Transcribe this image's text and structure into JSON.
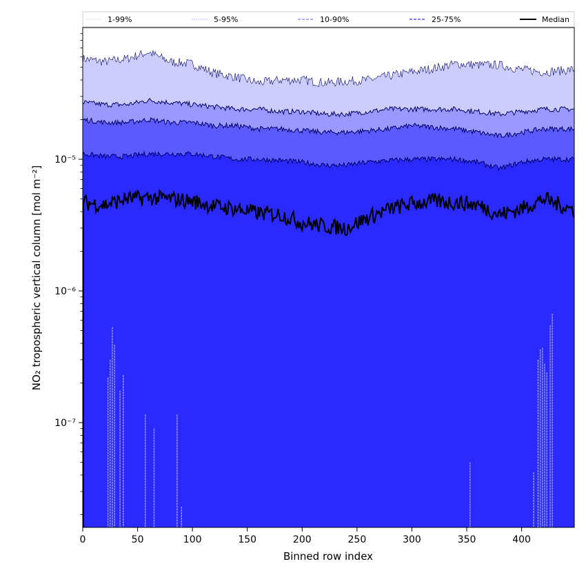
{
  "chart_data": {
    "type": "area",
    "xlabel": "Binned row index",
    "ylabel": "NO₂ tropospheric vertical column [mol m⁻²]",
    "x_ticks": [
      0,
      50,
      100,
      150,
      200,
      250,
      300,
      350,
      400
    ],
    "x_tick_labels": [
      "0",
      "50",
      "100",
      "150",
      "200",
      "250",
      "300",
      "350",
      "400"
    ],
    "y_ticks": [
      1e-07,
      1e-06,
      1e-05
    ],
    "y_tick_labels": [
      "10⁻⁷",
      "10⁻⁶",
      "10⁻⁵"
    ],
    "xlim": [
      0,
      448
    ],
    "ylim": [
      1.6e-08,
      0.0001
    ],
    "y_scale": "log",
    "grid": false,
    "legend_position": "top",
    "x": [
      0,
      20,
      40,
      60,
      80,
      100,
      120,
      140,
      160,
      180,
      200,
      220,
      240,
      260,
      280,
      300,
      320,
      340,
      360,
      380,
      400,
      420,
      448
    ],
    "series": [
      {
        "name": "1-99%",
        "upper": [
          5.8e-05,
          5.5e-05,
          5.8e-05,
          6.5e-05,
          5.5e-05,
          5.3e-05,
          4.5e-05,
          4.2e-05,
          3.8e-05,
          4e-05,
          4e-05,
          3.8e-05,
          3.9e-05,
          4e-05,
          4.3e-05,
          4.6e-05,
          4.9e-05,
          5.3e-05,
          5.2e-05,
          5.2e-05,
          4.8e-05,
          4.6e-05,
          4.8e-05
        ],
        "lower": [
          2.6e-08,
          2.6e-08,
          2.6e-08,
          2.6e-08,
          2.6e-08,
          2.6e-08,
          2.6e-08,
          2.6e-08,
          2.6e-08,
          2.6e-08,
          2.6e-08,
          2.6e-08,
          2.6e-08,
          2.6e-08,
          2.6e-08,
          2.6e-08,
          2.6e-08,
          2.6e-08,
          2.6e-08,
          2.6e-08,
          2.6e-08,
          2.6e-08,
          2.6e-08
        ],
        "color": "#ccccff"
      },
      {
        "name": "5-95%",
        "upper": [
          2.7e-05,
          2.6e-05,
          2.6e-05,
          2.8e-05,
          2.7e-05,
          2.6e-05,
          2.5e-05,
          2.4e-05,
          2.4e-05,
          2.3e-05,
          2.3e-05,
          2.2e-05,
          2.2e-05,
          2.3e-05,
          2.4e-05,
          2.4e-05,
          2.4e-05,
          2.4e-05,
          2.3e-05,
          2.2e-05,
          2.3e-05,
          2.4e-05,
          2.4e-05
        ],
        "lower": [],
        "color": "#9999ff"
      },
      {
        "name": "10-90%",
        "upper": [
          2e-05,
          1.9e-05,
          1.9e-05,
          2e-05,
          1.9e-05,
          1.9e-05,
          1.8e-05,
          1.8e-05,
          1.7e-05,
          1.7e-05,
          1.65e-05,
          1.6e-05,
          1.6e-05,
          1.65e-05,
          1.7e-05,
          1.8e-05,
          1.75e-05,
          1.7e-05,
          1.6e-05,
          1.5e-05,
          1.6e-05,
          1.7e-05,
          1.7e-05
        ],
        "lower": [],
        "color": "#5a5aff"
      },
      {
        "name": "25-75%",
        "upper": [
          1.1e-05,
          1.05e-05,
          1.05e-05,
          1.1e-05,
          1.1e-05,
          1.1e-05,
          1.05e-05,
          1e-05,
          1e-05,
          9.8e-06,
          9.5e-06,
          9e-06,
          9e-06,
          9.5e-06,
          9.8e-06,
          1e-05,
          1e-05,
          1e-05,
          9.5e-06,
          8.5e-06,
          9.5e-06,
          1e-05,
          1e-05
        ],
        "lower": [],
        "color": "#2a2aff"
      },
      {
        "name": "Median",
        "values": [
          4.7e-06,
          4.5e-06,
          5e-06,
          5.1e-06,
          5e-06,
          4.8e-06,
          4.4e-06,
          4.2e-06,
          3.9e-06,
          3.8e-06,
          3.3e-06,
          3.1e-06,
          3e-06,
          3.6e-06,
          4.2e-06,
          4.6e-06,
          4.8e-06,
          4.7e-06,
          4.5e-06,
          3.8e-06,
          4.2e-06,
          5e-06,
          4.1e-06
        ],
        "color": "#000000"
      }
    ],
    "light_spikes": [
      {
        "x": 23,
        "top": 2.2e-07
      },
      {
        "x": 25,
        "top": 3e-07
      },
      {
        "x": 27,
        "top": 5.3e-07
      },
      {
        "x": 29,
        "top": 3.9e-07
      },
      {
        "x": 34,
        "top": 1.75e-07
      },
      {
        "x": 37,
        "top": 2.3e-07
      },
      {
        "x": 57,
        "top": 1.15e-07
      },
      {
        "x": 65,
        "top": 9e-08
      },
      {
        "x": 86,
        "top": 1.15e-07
      },
      {
        "x": 90,
        "top": 2.3e-08
      },
      {
        "x": 353,
        "top": 5e-08
      },
      {
        "x": 411,
        "top": 4.2e-08
      },
      {
        "x": 415,
        "top": 3e-07
      },
      {
        "x": 417,
        "top": 3.6e-07
      },
      {
        "x": 419,
        "top": 3.7e-07
      },
      {
        "x": 421,
        "top": 2.8e-07
      },
      {
        "x": 423,
        "top": 2.4e-07
      },
      {
        "x": 426,
        "top": 5.5e-07
      },
      {
        "x": 428,
        "top": 6.7e-07
      }
    ]
  }
}
